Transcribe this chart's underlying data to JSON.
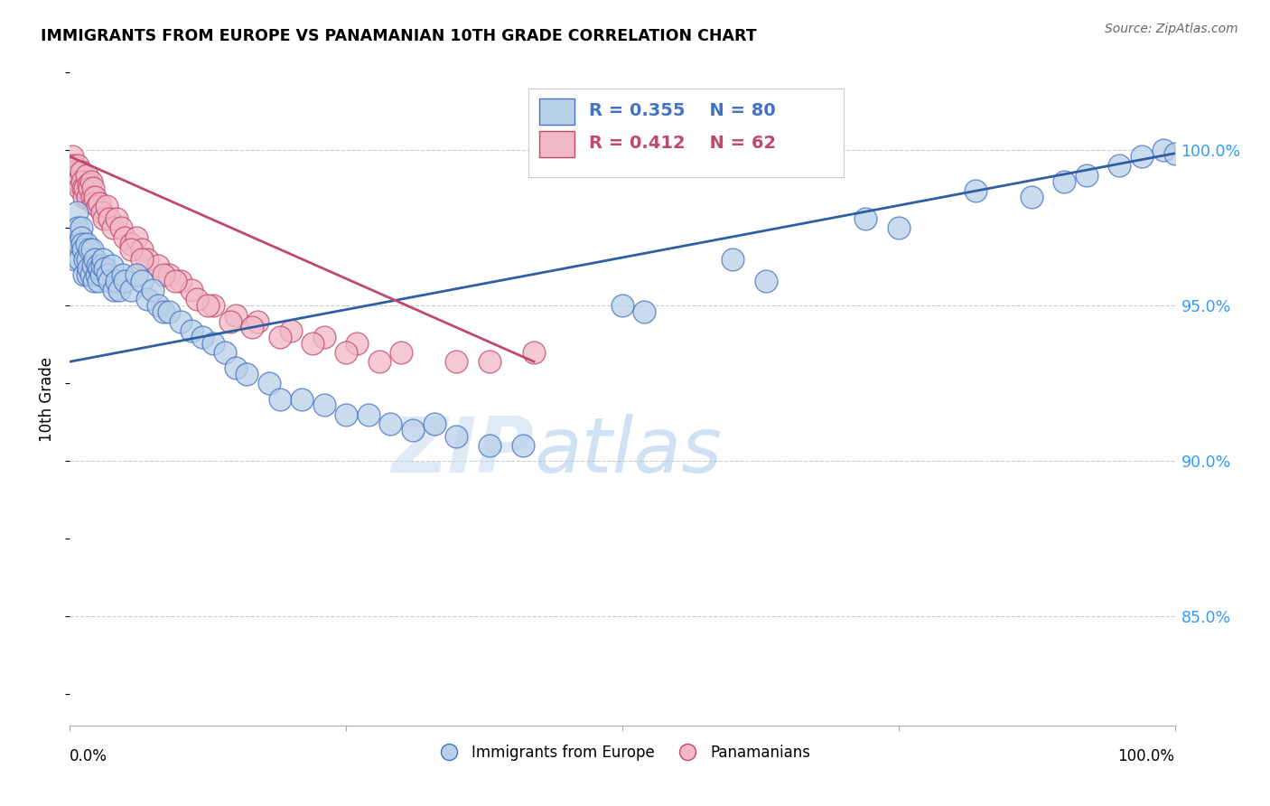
{
  "title": "IMMIGRANTS FROM EUROPE VS PANAMANIAN 10TH GRADE CORRELATION CHART",
  "source": "Source: ZipAtlas.com",
  "ylabel": "10th Grade",
  "watermark_zip": "ZIP",
  "watermark_atlas": "atlas",
  "legend_blue_r": "R = 0.355",
  "legend_blue_n": "N = 80",
  "legend_pink_r": "R = 0.412",
  "legend_pink_n": "N = 62",
  "legend_blue_label": "Immigrants from Europe",
  "legend_pink_label": "Panamanians",
  "blue_fill": "#b8d0e8",
  "blue_edge": "#4472c4",
  "pink_fill": "#f2b8c6",
  "pink_edge": "#c0496a",
  "blue_line_color": "#2e5fa3",
  "pink_line_color": "#c0496a",
  "ytick_color": "#3399ff",
  "ytick_labels": [
    "100.0%",
    "95.0%",
    "90.0%",
    "85.0%"
  ],
  "ytick_values": [
    1.0,
    0.95,
    0.9,
    0.85
  ],
  "xlim": [
    0.0,
    1.0
  ],
  "ylim": [
    0.815,
    1.025
  ],
  "blue_scatter_x": [
    0.002,
    0.004,
    0.005,
    0.006,
    0.007,
    0.008,
    0.009,
    0.01,
    0.01,
    0.011,
    0.012,
    0.013,
    0.014,
    0.015,
    0.016,
    0.016,
    0.017,
    0.018,
    0.019,
    0.02,
    0.021,
    0.022,
    0.023,
    0.024,
    0.025,
    0.026,
    0.027,
    0.028,
    0.029,
    0.03,
    0.032,
    0.034,
    0.036,
    0.038,
    0.04,
    0.042,
    0.045,
    0.048,
    0.05,
    0.055,
    0.06,
    0.065,
    0.07,
    0.075,
    0.08,
    0.085,
    0.09,
    0.1,
    0.11,
    0.12,
    0.13,
    0.14,
    0.15,
    0.16,
    0.18,
    0.19,
    0.21,
    0.23,
    0.25,
    0.27,
    0.29,
    0.31,
    0.33,
    0.35,
    0.38,
    0.41,
    0.5,
    0.52,
    0.6,
    0.63,
    0.72,
    0.75,
    0.82,
    0.87,
    0.9,
    0.92,
    0.95,
    0.97,
    0.99,
    1.0
  ],
  "blue_scatter_y": [
    0.97,
    0.97,
    0.965,
    0.98,
    0.975,
    0.97,
    0.965,
    0.975,
    0.972,
    0.97,
    0.968,
    0.96,
    0.965,
    0.97,
    0.96,
    0.965,
    0.962,
    0.968,
    0.96,
    0.968,
    0.963,
    0.958,
    0.965,
    0.96,
    0.963,
    0.958,
    0.962,
    0.96,
    0.963,
    0.965,
    0.962,
    0.96,
    0.958,
    0.963,
    0.955,
    0.958,
    0.955,
    0.96,
    0.958,
    0.955,
    0.96,
    0.958,
    0.952,
    0.955,
    0.95,
    0.948,
    0.948,
    0.945,
    0.942,
    0.94,
    0.938,
    0.935,
    0.93,
    0.928,
    0.925,
    0.92,
    0.92,
    0.918,
    0.915,
    0.915,
    0.912,
    0.91,
    0.912,
    0.908,
    0.905,
    0.905,
    0.95,
    0.948,
    0.965,
    0.958,
    0.978,
    0.975,
    0.987,
    0.985,
    0.99,
    0.992,
    0.995,
    0.998,
    1.0,
    0.999
  ],
  "pink_scatter_x": [
    0.002,
    0.003,
    0.004,
    0.005,
    0.006,
    0.007,
    0.008,
    0.009,
    0.01,
    0.011,
    0.012,
    0.013,
    0.014,
    0.015,
    0.016,
    0.017,
    0.018,
    0.019,
    0.02,
    0.021,
    0.022,
    0.023,
    0.025,
    0.027,
    0.029,
    0.031,
    0.033,
    0.036,
    0.039,
    0.042,
    0.046,
    0.05,
    0.055,
    0.06,
    0.065,
    0.07,
    0.08,
    0.09,
    0.1,
    0.11,
    0.13,
    0.15,
    0.17,
    0.2,
    0.23,
    0.26,
    0.3,
    0.35,
    0.38,
    0.42,
    0.055,
    0.065,
    0.085,
    0.095,
    0.115,
    0.125,
    0.145,
    0.165,
    0.19,
    0.22,
    0.25,
    0.28
  ],
  "pink_scatter_y": [
    0.998,
    0.995,
    0.993,
    0.99,
    0.992,
    0.995,
    0.99,
    0.988,
    0.993,
    0.99,
    0.988,
    0.985,
    0.988,
    0.992,
    0.985,
    0.989,
    0.988,
    0.99,
    0.985,
    0.988,
    0.983,
    0.985,
    0.982,
    0.983,
    0.98,
    0.978,
    0.982,
    0.978,
    0.975,
    0.978,
    0.975,
    0.972,
    0.97,
    0.972,
    0.968,
    0.965,
    0.963,
    0.96,
    0.958,
    0.955,
    0.95,
    0.947,
    0.945,
    0.942,
    0.94,
    0.938,
    0.935,
    0.932,
    0.932,
    0.935,
    0.968,
    0.965,
    0.96,
    0.958,
    0.952,
    0.95,
    0.945,
    0.943,
    0.94,
    0.938,
    0.935,
    0.932
  ],
  "blue_line_x": [
    0.0,
    1.0
  ],
  "blue_line_y": [
    0.932,
    0.999
  ],
  "pink_line_x": [
    0.0,
    0.42
  ],
  "pink_line_y": [
    0.998,
    0.932
  ]
}
